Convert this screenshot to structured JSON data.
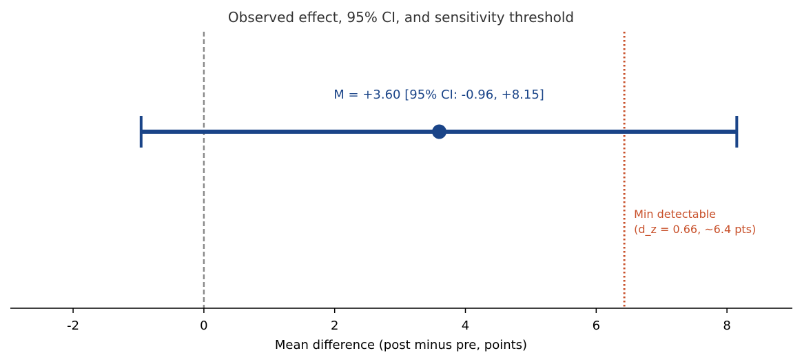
{
  "chart_data": {
    "type": "forest",
    "title": "Observed effect, 95% CI, and sensitivity threshold",
    "xlabel": "Mean difference (post minus pre, points)",
    "xlim": [
      -2.96,
      9.0
    ],
    "x_ticks": [
      -2,
      0,
      2,
      4,
      6,
      8
    ],
    "x_tick_labels": [
      "-2",
      "0",
      "2",
      "4",
      "6",
      "8"
    ],
    "grid": false,
    "estimate": {
      "mean": 3.6,
      "ci_low": -0.96,
      "ci_high": 8.15
    },
    "estimate_label": "M = +3.60  [95% CI: -0.96, +8.15]",
    "reference_line": {
      "x": 0,
      "style": "dashed",
      "color": "#888888"
    },
    "threshold_line": {
      "x": 6.43,
      "style": "dotted",
      "color": "#c8502a"
    },
    "threshold_label_lines": [
      "Min detectable",
      "(d_z = 0.66, ~6.4 pts)"
    ],
    "colors": {
      "estimate": "#1a4488",
      "threshold": "#c8502a",
      "reference": "#888888",
      "axis": "#000000",
      "title": "#333333"
    }
  }
}
